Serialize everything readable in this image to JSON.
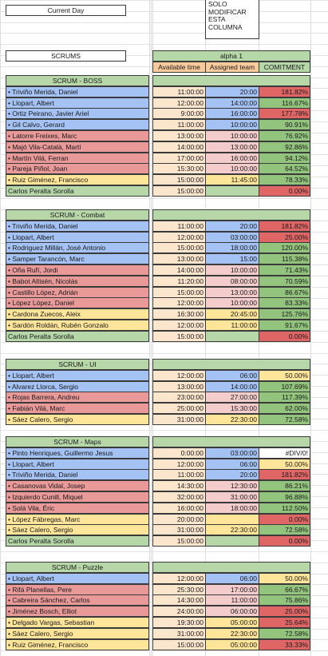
{
  "current_day_label": "Current Day",
  "note_lines": [
    "SOLO",
    "MODIFICAR",
    "ESTA",
    "COLUMNA"
  ],
  "scrums_label": "SCRUMS",
  "alpha_label": "alpha 1",
  "headers": {
    "available": "Available time",
    "assigned": "Assigned team",
    "commitment": "COMITMENT"
  },
  "colors": {
    "section": "#b7d7a8",
    "blue": "#a4c2f4",
    "red": "#ea9999",
    "yellow": "#ffe599",
    "green": "#b6d7a8",
    "peach": "#fce5cd",
    "pinkLight": "#f4cccc",
    "orangeHeader": "#f9cb9c",
    "commitGreen": "#93c47d",
    "commitRed": "#e06666",
    "white": "#ffffff"
  },
  "sections": [
    {
      "title": "SCRUM - BOSS",
      "rows": [
        {
          "name": "• Triviño Merida, Daniel",
          "avail": "11:00:00",
          "assigned": "20:00",
          "commit": "181.82%",
          "nc": "blue",
          "ac": "blue",
          "cc": "commitRed"
        },
        {
          "name": "• Llopart, Albert",
          "avail": "12:00:00",
          "assigned": "14:00:00",
          "commit": "116.67%",
          "nc": "blue",
          "ac": "blue",
          "cc": "commitGreen"
        },
        {
          "name": "• Ortiz Peirano, Javier Ariel",
          "avail": "9:00:00",
          "assigned": "16:00:00",
          "commit": "177.78%",
          "nc": "blue",
          "ac": "blue",
          "cc": "commitRed"
        },
        {
          "name": "• Gil Calvo, Gerard",
          "avail": "11:00:00",
          "assigned": "10:00:00",
          "commit": "90.91%",
          "nc": "blue",
          "ac": "blue",
          "cc": "commitGreen"
        },
        {
          "name": "• Latorre Freixes, Marc",
          "avail": "13:00:00",
          "assigned": "10:00:00",
          "commit": "76.92%",
          "nc": "red",
          "ac": "pinkLight",
          "cc": "commitGreen"
        },
        {
          "name": "• Majó Vila-Català, Martí",
          "avail": "14:00:00",
          "assigned": "13:00:00",
          "commit": "92.86%",
          "nc": "red",
          "ac": "pinkLight",
          "cc": "commitGreen"
        },
        {
          "name": "• Martín Vilá, Ferran",
          "avail": "17:00:00",
          "assigned": "16:00:00",
          "commit": "94.12%",
          "nc": "red",
          "ac": "pinkLight",
          "cc": "commitGreen"
        },
        {
          "name": "• Pareja Piñol, Joan",
          "avail": "15:30:00",
          "assigned": "10:00:00",
          "commit": "64.52%",
          "nc": "red",
          "ac": "pinkLight",
          "cc": "commitGreen"
        },
        {
          "name": "• Ruiz Giménez, Francisco",
          "avail": "15:00:00",
          "assigned": "11:45:00",
          "commit": "78.33%",
          "nc": "yellow",
          "ac": "yellow",
          "cc": "commitGreen"
        },
        {
          "name": "Carlos Peralta Sorolla",
          "avail": "15:00:00",
          "assigned": "",
          "commit": "0.00%",
          "nc": "green",
          "ac": "green",
          "cc": "commitRed"
        }
      ]
    },
    {
      "title": "SCRUM - Combat",
      "rows": [
        {
          "name": "• Triviño Merida, Daniel",
          "avail": "11:00:00",
          "assigned": "20:00",
          "commit": "181.82%",
          "nc": "blue",
          "ac": "blue",
          "cc": "commitRed"
        },
        {
          "name": "• Llopart, Albert",
          "avail": "12:00:00",
          "assigned": "03:00:00",
          "commit": "25.00%",
          "nc": "blue",
          "ac": "blue",
          "cc": "commitRed"
        },
        {
          "name": "• Rodriguez Millán, José Antonio",
          "avail": "15:00:00",
          "assigned": "18:00:00",
          "commit": "120.00%",
          "nc": "blue",
          "ac": "blue",
          "cc": "commitGreen"
        },
        {
          "name": "• Samper Tarancón, Marc",
          "avail": "13:00:00",
          "assigned": "15:00",
          "commit": "115.38%",
          "nc": "blue",
          "ac": "blue",
          "cc": "commitGreen"
        },
        {
          "name": "• Oña Rufí, Jordi",
          "avail": "14:00:00",
          "assigned": "10:00:00",
          "commit": "71.43%",
          "nc": "red",
          "ac": "pinkLight",
          "cc": "commitGreen"
        },
        {
          "name": "• Babot Altisén, Nicolás",
          "avail": "11:20:00",
          "assigned": "08:00:00",
          "commit": "70.59%",
          "nc": "red",
          "ac": "pinkLight",
          "cc": "commitGreen"
        },
        {
          "name": "• Castillo López, Adrián",
          "avail": "15:00:00",
          "assigned": "13:00:00",
          "commit": "86.67%",
          "nc": "red",
          "ac": "pinkLight",
          "cc": "commitGreen"
        },
        {
          "name": "• López López, Daniel",
          "avail": "12:00:00",
          "assigned": "10:00:00",
          "commit": "83.33%",
          "nc": "red",
          "ac": "pinkLight",
          "cc": "commitGreen"
        },
        {
          "name": "• Cardona Zuecos, Aleix",
          "avail": "16:30:00",
          "assigned": "20:45:00",
          "commit": "125.76%",
          "nc": "yellow",
          "ac": "yellow",
          "cc": "commitGreen"
        },
        {
          "name": "• Sardón Roldán, Rubén Gonzalo",
          "avail": "12:00:00",
          "assigned": "11:00:00",
          "commit": "91.67%",
          "nc": "yellow",
          "ac": "yellow",
          "cc": "commitGreen"
        },
        {
          "name": "Carlos Peralta Sorolla",
          "avail": "15:00:00",
          "assigned": "",
          "commit": "0.00%",
          "nc": "green",
          "ac": "green",
          "cc": "commitRed"
        }
      ]
    },
    {
      "title": "SCRUM - UI",
      "rows": [
        {
          "name": "• Llopart, Albert",
          "avail": "12:00:00",
          "assigned": "06:00",
          "commit": "50.00%",
          "nc": "blue",
          "ac": "blue",
          "cc": "yellow"
        },
        {
          "name": "• Alvarez Llorca, Sergio",
          "avail": "13:00:00",
          "assigned": "14:00:00",
          "commit": "107.69%",
          "nc": "blue",
          "ac": "blue",
          "cc": "commitGreen"
        },
        {
          "name": "• Rojas Barrera, Andreu",
          "avail": "23:00:00",
          "assigned": "27:00:00",
          "commit": "117.39%",
          "nc": "red",
          "ac": "pinkLight",
          "cc": "commitGreen"
        },
        {
          "name": "• Fabián Vilá, Marc",
          "avail": "25:00:00",
          "assigned": "15:30:00",
          "commit": "62.00%",
          "nc": "red",
          "ac": "pinkLight",
          "cc": "commitGreen"
        },
        {
          "name": "• Sáez Calero, Sergio",
          "avail": "31:00:00",
          "assigned": "22:30:00",
          "commit": "72.58%",
          "nc": "yellow",
          "ac": "yellow",
          "cc": "commitGreen"
        }
      ]
    },
    {
      "title": "SCRUM - Maps",
      "rows": [
        {
          "name": "• Pinto Henriques, Guillermo Jesus",
          "avail": "0:00:00",
          "assigned": "03:00:00",
          "commit": "#DIV/0!",
          "nc": "blue",
          "ac": "blue",
          "cc": "white"
        },
        {
          "name": "• Llopart, Albert",
          "avail": "12:00:00",
          "assigned": "06:00",
          "commit": "50.00%",
          "nc": "blue",
          "ac": "blue",
          "cc": "yellow"
        },
        {
          "name": "• Triviño Merida, Daniel",
          "avail": "11:00:00",
          "assigned": "20:00",
          "commit": "181.82%",
          "nc": "blue",
          "ac": "blue",
          "cc": "commitRed"
        },
        {
          "name": "• Casanovas Vidal, Josep",
          "avail": "14:30:00",
          "assigned": "12:30:00",
          "commit": "86.21%",
          "nc": "red",
          "ac": "pinkLight",
          "cc": "commitGreen"
        },
        {
          "name": "• Izquierdo Cunill, Miquel",
          "avail": "32:00:00",
          "assigned": "31:00:00",
          "commit": "96.88%",
          "nc": "red",
          "ac": "pinkLight",
          "cc": "commitGreen"
        },
        {
          "name": "• Solá Vila, Éric",
          "avail": "16:00:00",
          "assigned": "18:00:00",
          "commit": "112.50%",
          "nc": "red",
          "ac": "pinkLight",
          "cc": "commitGreen"
        },
        {
          "name": "• López Fábregas, Marc",
          "avail": "20:00:00",
          "assigned": "",
          "commit": "0.00%",
          "nc": "yellow",
          "ac": "yellow",
          "cc": "commitRed"
        },
        {
          "name": "• Sáez Calero, Sergio",
          "avail": "31:00:00",
          "assigned": "22:30:00",
          "commit": "72.58%",
          "nc": "yellow",
          "ac": "yellow",
          "cc": "commitGreen"
        },
        {
          "name": "Carlos Peralta Sorolla",
          "avail": "15:00:00",
          "assigned": "",
          "commit": "0.00%",
          "nc": "green",
          "ac": "green",
          "cc": "commitRed"
        }
      ]
    },
    {
      "title": "SCRUM - Puzzle",
      "rows": [
        {
          "name": "• Llopart, Albert",
          "avail": "12:00:00",
          "assigned": "06:00",
          "commit": "50.00%",
          "nc": "blue",
          "ac": "blue",
          "cc": "yellow"
        },
        {
          "name": "• Rifá Planellas, Pere",
          "avail": "25:30:00",
          "assigned": "17:00:00",
          "commit": "66.67%",
          "nc": "red",
          "ac": "pinkLight",
          "cc": "commitGreen"
        },
        {
          "name": "• Cabreira Sánchez, Carlos",
          "avail": "14:30:00",
          "assigned": "11:00:00",
          "commit": "75.86%",
          "nc": "red",
          "ac": "pinkLight",
          "cc": "commitGreen"
        },
        {
          "name": "• Jiménez Bosch, Elliot",
          "avail": "24:00:00",
          "assigned": "06:00:00",
          "commit": "25.00%",
          "nc": "red",
          "ac": "pinkLight",
          "cc": "commitRed"
        },
        {
          "name": "• Delgado Vargas, Sebastian",
          "avail": "19:30:00",
          "assigned": "05:00:00",
          "commit": "25.64%",
          "nc": "yellow",
          "ac": "yellow",
          "cc": "commitRed"
        },
        {
          "name": "• Sáez Calero, Sergio",
          "avail": "31:00:00",
          "assigned": "22:30:00",
          "commit": "72.58%",
          "nc": "yellow",
          "ac": "yellow",
          "cc": "commitGreen"
        },
        {
          "name": "• Ruiz Giménez, Francisco",
          "avail": "15:00:00",
          "assigned": "05:00:00",
          "commit": "33.33%",
          "nc": "yellow",
          "ac": "yellow",
          "cc": "commitRed"
        }
      ]
    }
  ]
}
